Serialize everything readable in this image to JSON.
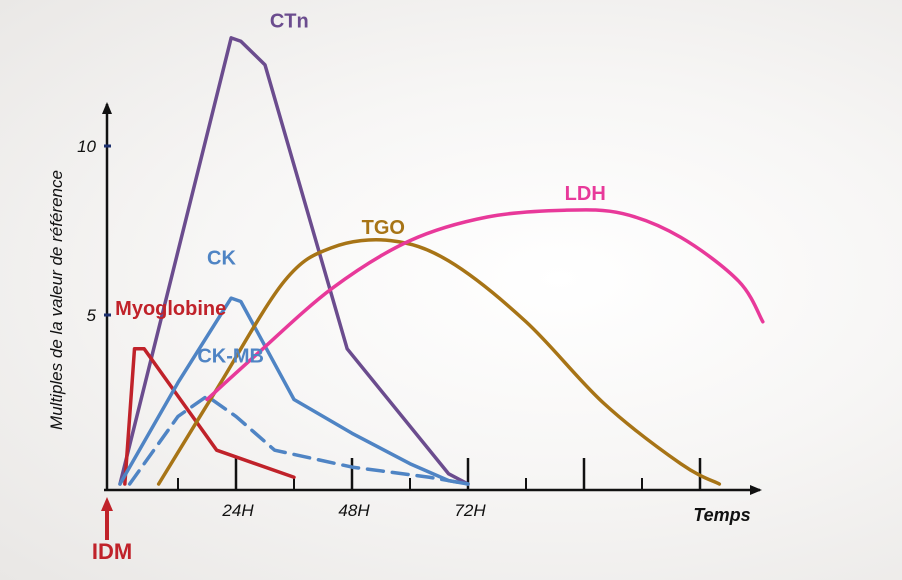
{
  "chart_data": {
    "type": "line",
    "title": "",
    "xlabel": "Temps",
    "ylabel": "Multiples de la valeur de référence",
    "x_ticks": [
      "24H",
      "48H",
      "72H"
    ],
    "y_ticks": [
      "5",
      "10"
    ],
    "ylim": [
      0,
      14
    ],
    "xlim": [
      0,
      132
    ],
    "marker_label": "IDM",
    "colors": {
      "axis": "#111111",
      "idm": "#c0222a"
    },
    "series": [
      {
        "name": "CTn",
        "color": "#6b4c8e",
        "style": "solid",
        "label_at": [
          31,
          13.5
        ],
        "points": [
          [
            0,
            0
          ],
          [
            23,
            13.2
          ],
          [
            25,
            13.1
          ],
          [
            30,
            12.4
          ],
          [
            47,
            4.0
          ],
          [
            68,
            0.3
          ],
          [
            72,
            0
          ]
        ]
      },
      {
        "name": "Myoglobine",
        "color": "#c0222a",
        "style": "solid",
        "label_at": [
          -1,
          5.0
        ],
        "points": [
          [
            1,
            0
          ],
          [
            3,
            4.0
          ],
          [
            5,
            4.0
          ],
          [
            12,
            2.6
          ],
          [
            20,
            1.0
          ],
          [
            24,
            0.8
          ],
          [
            36,
            0.2
          ]
        ]
      },
      {
        "name": "CK",
        "color": "#4f84c4",
        "style": "solid",
        "label_at": [
          18,
          6.5
        ],
        "points": [
          [
            0,
            0
          ],
          [
            12,
            3.0
          ],
          [
            23,
            5.5
          ],
          [
            25,
            5.4
          ],
          [
            36,
            2.5
          ],
          [
            48,
            1.5
          ],
          [
            60,
            0.6
          ],
          [
            68,
            0.1
          ],
          [
            72,
            0
          ]
        ]
      },
      {
        "name": "CK-MB",
        "color": "#4f84c4",
        "style": "dashed",
        "label_at": [
          16,
          3.6
        ],
        "points": [
          [
            2,
            0
          ],
          [
            12,
            2.0
          ],
          [
            18,
            2.6
          ],
          [
            24,
            2.0
          ],
          [
            32,
            1.0
          ],
          [
            48,
            0.5
          ],
          [
            64,
            0.2
          ],
          [
            72,
            0
          ]
        ]
      },
      {
        "name": "TGO",
        "color": "#a77416",
        "style": "solid",
        "label_at": [
          50,
          7.4
        ],
        "points": [
          [
            8,
            0
          ],
          [
            20,
            2.8
          ],
          [
            34,
            6.0
          ],
          [
            44,
            7.0
          ],
          [
            56,
            7.2
          ],
          [
            68,
            6.6
          ],
          [
            84,
            4.8
          ],
          [
            100,
            2.4
          ],
          [
            116,
            0.6
          ],
          [
            124,
            0
          ]
        ]
      },
      {
        "name": "LDH",
        "color": "#e8399a",
        "style": "solid",
        "label_at": [
          92,
          8.4
        ],
        "points": [
          [
            18,
            2.5
          ],
          [
            28,
            3.8
          ],
          [
            44,
            5.8
          ],
          [
            60,
            7.2
          ],
          [
            76,
            7.9
          ],
          [
            92,
            8.1
          ],
          [
            104,
            8.0
          ],
          [
            116,
            7.3
          ],
          [
            128,
            6.0
          ],
          [
            133,
            4.8
          ]
        ]
      }
    ]
  }
}
